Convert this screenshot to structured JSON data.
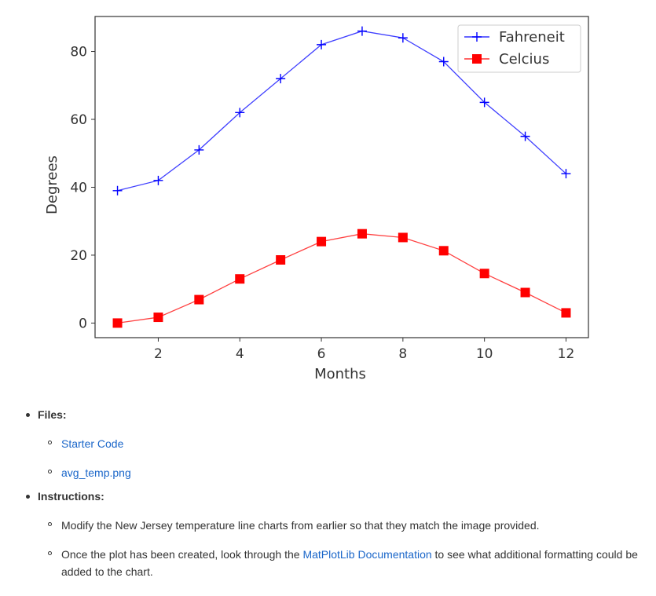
{
  "chart_data": {
    "type": "line",
    "xlabel": "Months",
    "ylabel": "Degrees",
    "xlim": [
      0.45,
      12.55
    ],
    "ylim": [
      -4.3,
      90.3
    ],
    "xticks": [
      2,
      4,
      6,
      8,
      10,
      12
    ],
    "yticks": [
      0,
      20,
      40,
      60,
      80
    ],
    "grid": false,
    "legend_position": "top-right",
    "x": [
      1,
      2,
      3,
      4,
      5,
      6,
      7,
      8,
      9,
      10,
      11,
      12
    ],
    "series": [
      {
        "name": "Fahreneit",
        "color": "#0000ff",
        "marker": "plus",
        "values": [
          39,
          42,
          51,
          62,
          72,
          82,
          86,
          84,
          77,
          65,
          55,
          44
        ]
      },
      {
        "name": "Celcius",
        "color": "#ff0000",
        "marker": "square",
        "values": [
          0,
          1.7,
          6.9,
          13,
          18.6,
          24,
          26.3,
          25.2,
          21.3,
          14.6,
          9,
          3
        ]
      }
    ]
  },
  "files": {
    "heading": "Files:",
    "links": [
      "Starter Code",
      "avg_temp.png"
    ]
  },
  "instructions": {
    "heading": "Instructions:",
    "item1": "Modify the New Jersey temperature line charts from earlier so that they match the image provided.",
    "item2_before": "Once the plot has been created, look through the ",
    "item2_link": "MatPlotLib Documentation",
    "item2_after": " to see what additional formatting could be added to the chart."
  }
}
